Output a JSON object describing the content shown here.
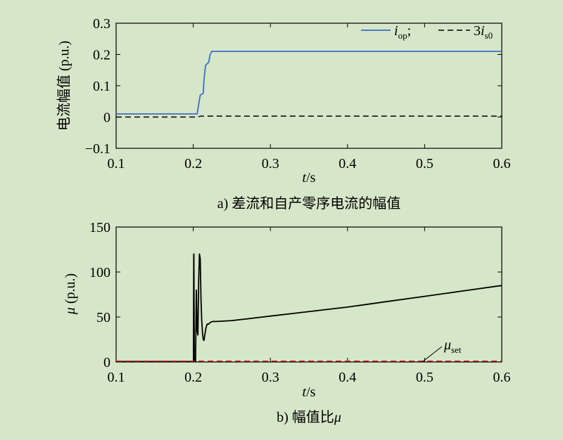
{
  "chart_data": [
    {
      "type": "line",
      "caption": "a) 差流和自产零序电流的幅值",
      "ylabel": "电流幅值 (p.u.)",
      "xlabel": "t/s",
      "xlim": [
        0.1,
        0.6
      ],
      "ylim": [
        -0.1,
        0.3
      ],
      "x_ticks": [
        "0.1",
        "0.2",
        "0.3",
        "0.4",
        "0.5",
        "0.6"
      ],
      "y_ticks": [
        "−0.1",
        "0",
        "0.1",
        "0.2",
        "0.3"
      ],
      "legend_position": "top-right",
      "series": [
        {
          "name": "i_op",
          "legend_main": "i",
          "legend_sub": "op",
          "legend_sep": ";",
          "color": "#3a6fc4",
          "dash": "solid",
          "x": [
            0.1,
            0.205,
            0.207,
            0.209,
            0.211,
            0.213,
            0.214,
            0.216,
            0.218,
            0.22,
            0.222,
            0.224,
            0.6
          ],
          "y": [
            0.01,
            0.01,
            0.04,
            0.07,
            0.073,
            0.076,
            0.12,
            0.165,
            0.17,
            0.175,
            0.2,
            0.21,
            0.21
          ]
        },
        {
          "name": "3i_s0",
          "legend_main": "3i",
          "legend_sub": "s0",
          "color": "#000000",
          "dash": "dashed",
          "x": [
            0.1,
            0.205,
            0.21,
            0.6
          ],
          "y": [
            0.0,
            0.0,
            0.003,
            0.003
          ]
        }
      ]
    },
    {
      "type": "line",
      "caption": "b) 幅值比μ",
      "ylabel": "μ (p.u.)",
      "xlabel": "t/s",
      "xlim": [
        0.1,
        0.6
      ],
      "ylim": [
        0,
        150
      ],
      "x_ticks": [
        "0.1",
        "0.2",
        "0.3",
        "0.4",
        "0.5",
        "0.6"
      ],
      "y_ticks": [
        "0",
        "50",
        "100",
        "150"
      ],
      "series": [
        {
          "name": "μ",
          "color": "#000000",
          "dash": "solid",
          "x": [
            0.1,
            0.2003,
            0.2006,
            0.2008,
            0.2011,
            0.2014,
            0.202,
            0.203,
            0.204,
            0.205,
            0.206,
            0.207,
            0.208,
            0.209,
            0.21,
            0.211,
            0.212,
            0.213,
            0.214,
            0.215,
            0.2165,
            0.218,
            0.22,
            0.222,
            0.225,
            0.23,
            0.25,
            0.27,
            0.3,
            0.33,
            0.36,
            0.4,
            0.45,
            0.5,
            0.55,
            0.6
          ],
          "y": [
            0.5,
            0.5,
            120,
            120,
            60,
            0.5,
            0.5,
            0.5,
            80,
            35,
            30,
            90,
            120,
            115,
            70,
            45,
            32,
            25,
            24,
            30,
            38,
            42,
            42,
            44,
            45,
            45,
            46,
            48,
            51,
            54,
            57,
            61,
            67,
            73,
            79,
            85
          ]
        },
        {
          "name": "μ_set",
          "label_main": "μ",
          "label_sub": "set",
          "color": "#d62020",
          "dash": "dashed",
          "x": [
            0.1,
            0.6
          ],
          "y": [
            1,
            1
          ]
        }
      ]
    }
  ]
}
